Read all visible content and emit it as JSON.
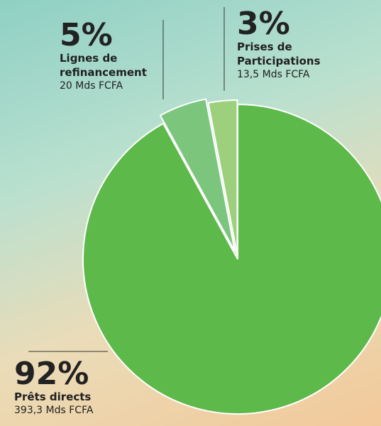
{
  "chart_data": {
    "type": "pie",
    "categories": [
      "Prêts directs",
      "Lignes de refinancement",
      "Prises de Participations"
    ],
    "values": [
      92,
      5,
      3
    ],
    "value_labels": [
      "92%",
      "5%",
      "3%"
    ],
    "amounts": [
      "393,3 Mds FCFA",
      "20 Mds FCFA",
      "13,5 Mds FCFA"
    ],
    "colors": [
      "#5cb94a",
      "#7cc57d",
      "#9dd07c"
    ]
  }
}
